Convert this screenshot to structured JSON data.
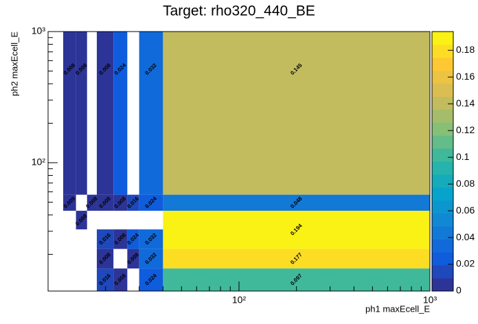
{
  "chart_data": {
    "type": "heatmap",
    "title": "Target: rho320_440_BE",
    "x_label": "ph1 maxEcell_E",
    "y_label": "ph2 maxEcell_E",
    "xscale": "log",
    "yscale": "log",
    "xlim": [
      10,
      1000
    ],
    "ylim": [
      10.5,
      1000
    ],
    "zlim": [
      0,
      0.194
    ],
    "xticks": [
      {
        "value": 100,
        "label": "10²"
      },
      {
        "value": 1000,
        "label": "10³"
      }
    ],
    "yticks": [
      {
        "value": 100,
        "label": "10²"
      },
      {
        "value": 1000,
        "label": "10³"
      }
    ],
    "zticks": [
      0,
      0.02,
      0.04,
      0.06,
      0.08,
      0.1,
      0.12,
      0.14,
      0.16,
      0.18
    ],
    "palette": "bird",
    "cells": [
      {
        "x": [
          12,
          14
        ],
        "y": [
          57,
          1000
        ],
        "value": 0.008
      },
      {
        "x": [
          14,
          16
        ],
        "y": [
          57,
          1000
        ],
        "value": 0.008
      },
      {
        "x": [
          18,
          22
        ],
        "y": [
          57,
          1000
        ],
        "value": 0.008
      },
      {
        "x": [
          22,
          26
        ],
        "y": [
          57,
          1000
        ],
        "value": 0.024
      },
      {
        "x": [
          30,
          40
        ],
        "y": [
          57,
          1000
        ],
        "value": 0.032
      },
      {
        "x": [
          40,
          1000
        ],
        "y": [
          57,
          1000
        ],
        "value": 0.145
      },
      {
        "x": [
          12,
          14
        ],
        "y": [
          43,
          57
        ],
        "value": 0.009
      },
      {
        "x": [
          16,
          18
        ],
        "y": [
          43,
          57
        ],
        "value": 0.008
      },
      {
        "x": [
          18,
          22
        ],
        "y": [
          43,
          57
        ],
        "value": 0.008
      },
      {
        "x": [
          22,
          26
        ],
        "y": [
          43,
          57
        ],
        "value": 0.008
      },
      {
        "x": [
          26,
          30
        ],
        "y": [
          43,
          57
        ],
        "value": 0.016
      },
      {
        "x": [
          30,
          40
        ],
        "y": [
          43,
          57
        ],
        "value": 0.024
      },
      {
        "x": [
          40,
          1000
        ],
        "y": [
          43,
          57
        ],
        "value": 0.048
      },
      {
        "x": [
          14,
          16
        ],
        "y": [
          31,
          43
        ],
        "value": 0.008
      },
      {
        "x": [
          18,
          22
        ],
        "y": [
          22,
          31
        ],
        "value": 0.016
      },
      {
        "x": [
          22,
          26
        ],
        "y": [
          22,
          31
        ],
        "value": 0.008
      },
      {
        "x": [
          26,
          30
        ],
        "y": [
          22,
          31
        ],
        "value": 0.024
      },
      {
        "x": [
          30,
          40
        ],
        "y": [
          22,
          31
        ],
        "value": 0.032
      },
      {
        "x": [
          40,
          1000
        ],
        "y": [
          22,
          43
        ],
        "value": 0.194
      },
      {
        "x": [
          18,
          22
        ],
        "y": [
          15.6,
          22
        ],
        "value": 0.008
      },
      {
        "x": [
          26,
          30
        ],
        "y": [
          15.6,
          22
        ],
        "value": 0.008
      },
      {
        "x": [
          30,
          40
        ],
        "y": [
          15.6,
          22
        ],
        "value": 0.032
      },
      {
        "x": [
          40,
          1000
        ],
        "y": [
          15.6,
          22
        ],
        "value": 0.177
      },
      {
        "x": [
          18,
          22
        ],
        "y": [
          10.5,
          15.6
        ],
        "value": 0.016
      },
      {
        "x": [
          22,
          26
        ],
        "y": [
          10.5,
          15.6
        ],
        "value": 0.008
      },
      {
        "x": [
          30,
          40
        ],
        "y": [
          10.5,
          15.6
        ],
        "value": 0.024
      },
      {
        "x": [
          40,
          1000
        ],
        "y": [
          10.5,
          15.6
        ],
        "value": 0.097
      }
    ]
  }
}
